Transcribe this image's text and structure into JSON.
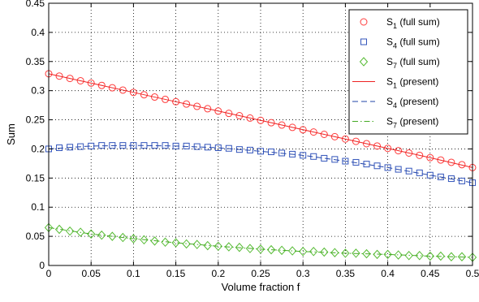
{
  "chart_data": {
    "type": "line",
    "xlabel": "Volume fraction f",
    "ylabel": "Sum",
    "xlim": [
      0,
      0.5
    ],
    "ylim": [
      0,
      0.45
    ],
    "xticks": [
      0,
      0.05,
      0.1,
      0.15,
      0.2,
      0.25,
      0.3,
      0.35,
      0.4,
      0.45,
      0.5
    ],
    "xtick_labels": [
      "0",
      "0.05",
      "0.1",
      "0.15",
      "0.2",
      "0.25",
      "0.3",
      "0.35",
      "0.4",
      "0.45",
      "0.5"
    ],
    "yticks": [
      0,
      0.05,
      0.1,
      0.15,
      0.2,
      0.25,
      0.3,
      0.35,
      0.4,
      0.45
    ],
    "ytick_labels": [
      "0",
      "0.05",
      "0.1",
      "0.15",
      "0.2",
      "0.25",
      "0.3",
      "0.35",
      "0.4",
      "0.45"
    ],
    "grid": true,
    "legend_position": "top-right",
    "series": [
      {
        "name": "S1 (full sum)",
        "sym": "S",
        "sub": "1",
        "note": "(full sum)",
        "marker": "circle",
        "style": "marker",
        "color": "#ff3b3b",
        "x": [
          0,
          0.0125,
          0.025,
          0.0375,
          0.05,
          0.0625,
          0.075,
          0.0875,
          0.1,
          0.1125,
          0.125,
          0.1375,
          0.15,
          0.1625,
          0.175,
          0.1875,
          0.2,
          0.2125,
          0.225,
          0.2375,
          0.25,
          0.2625,
          0.275,
          0.2875,
          0.3,
          0.3125,
          0.325,
          0.3375,
          0.35,
          0.3625,
          0.375,
          0.3875,
          0.4,
          0.4125,
          0.425,
          0.4375,
          0.45,
          0.4625,
          0.475,
          0.4875,
          0.5
        ],
        "y": [
          0.329,
          0.325,
          0.321,
          0.317,
          0.313,
          0.309,
          0.305,
          0.301,
          0.297,
          0.293,
          0.289,
          0.285,
          0.281,
          0.277,
          0.273,
          0.269,
          0.265,
          0.261,
          0.257,
          0.253,
          0.249,
          0.245,
          0.241,
          0.237,
          0.233,
          0.229,
          0.225,
          0.221,
          0.217,
          0.213,
          0.209,
          0.205,
          0.201,
          0.197,
          0.193,
          0.189,
          0.185,
          0.181,
          0.177,
          0.173,
          0.168
        ]
      },
      {
        "name": "S4 (full sum)",
        "sym": "S",
        "sub": "4",
        "note": "(full sum)",
        "marker": "square",
        "style": "marker",
        "color": "#3355bb",
        "x": [
          0,
          0.0125,
          0.025,
          0.0375,
          0.05,
          0.0625,
          0.075,
          0.0875,
          0.1,
          0.1125,
          0.125,
          0.1375,
          0.15,
          0.1625,
          0.175,
          0.1875,
          0.2,
          0.2125,
          0.225,
          0.2375,
          0.25,
          0.2625,
          0.275,
          0.2875,
          0.3,
          0.3125,
          0.325,
          0.3375,
          0.35,
          0.3625,
          0.375,
          0.3875,
          0.4,
          0.4125,
          0.425,
          0.4375,
          0.45,
          0.4625,
          0.475,
          0.4875,
          0.5
        ],
        "y": [
          0.2,
          0.202,
          0.203,
          0.204,
          0.205,
          0.206,
          0.206,
          0.206,
          0.206,
          0.206,
          0.206,
          0.206,
          0.205,
          0.205,
          0.204,
          0.203,
          0.202,
          0.201,
          0.199,
          0.198,
          0.196,
          0.195,
          0.193,
          0.191,
          0.189,
          0.187,
          0.184,
          0.182,
          0.179,
          0.177,
          0.174,
          0.171,
          0.168,
          0.165,
          0.162,
          0.159,
          0.155,
          0.152,
          0.149,
          0.145,
          0.142
        ]
      },
      {
        "name": "S7 (full sum)",
        "sym": "S",
        "sub": "7",
        "note": "(full sum)",
        "marker": "diamond",
        "style": "marker",
        "color": "#55bb33",
        "x": [
          0,
          0.0125,
          0.025,
          0.0375,
          0.05,
          0.0625,
          0.075,
          0.0875,
          0.1,
          0.1125,
          0.125,
          0.1375,
          0.15,
          0.1625,
          0.175,
          0.1875,
          0.2,
          0.2125,
          0.225,
          0.2375,
          0.25,
          0.2625,
          0.275,
          0.2875,
          0.3,
          0.3125,
          0.325,
          0.3375,
          0.35,
          0.3625,
          0.375,
          0.3875,
          0.4,
          0.4125,
          0.425,
          0.4375,
          0.45,
          0.4625,
          0.475,
          0.4875,
          0.5
        ],
        "y": [
          0.065,
          0.062,
          0.059,
          0.057,
          0.054,
          0.052,
          0.05,
          0.048,
          0.046,
          0.044,
          0.042,
          0.04,
          0.039,
          0.037,
          0.036,
          0.034,
          0.033,
          0.032,
          0.031,
          0.029,
          0.028,
          0.027,
          0.026,
          0.025,
          0.024,
          0.024,
          0.023,
          0.022,
          0.021,
          0.021,
          0.02,
          0.019,
          0.019,
          0.018,
          0.017,
          0.017,
          0.016,
          0.016,
          0.015,
          0.015,
          0.014
        ]
      },
      {
        "name": "S1 (present)",
        "sym": "S",
        "sub": "1",
        "note": "(present)",
        "style": "solid",
        "color": "#ee2222",
        "x": [
          0,
          0.05,
          0.1,
          0.15,
          0.2,
          0.25,
          0.3,
          0.35,
          0.4,
          0.45,
          0.5
        ],
        "y": [
          0.329,
          0.313,
          0.297,
          0.281,
          0.265,
          0.249,
          0.233,
          0.217,
          0.201,
          0.185,
          0.168
        ]
      },
      {
        "name": "S4 (present)",
        "sym": "S",
        "sub": "4",
        "note": "(present)",
        "style": "dashed",
        "color": "#2244aa",
        "x": [
          0,
          0.05,
          0.1,
          0.15,
          0.2,
          0.25,
          0.3,
          0.35,
          0.4,
          0.45,
          0.5
        ],
        "y": [
          0.2,
          0.205,
          0.206,
          0.205,
          0.202,
          0.196,
          0.189,
          0.179,
          0.168,
          0.155,
          0.142
        ]
      },
      {
        "name": "S7 (present)",
        "sym": "S",
        "sub": "7",
        "note": "(present)",
        "style": "dashdot",
        "color": "#44aa22",
        "x": [
          0,
          0.05,
          0.1,
          0.15,
          0.2,
          0.25,
          0.3,
          0.35,
          0.4,
          0.45,
          0.5
        ],
        "y": [
          0.065,
          0.054,
          0.046,
          0.039,
          0.033,
          0.028,
          0.024,
          0.021,
          0.019,
          0.016,
          0.014
        ]
      }
    ]
  }
}
